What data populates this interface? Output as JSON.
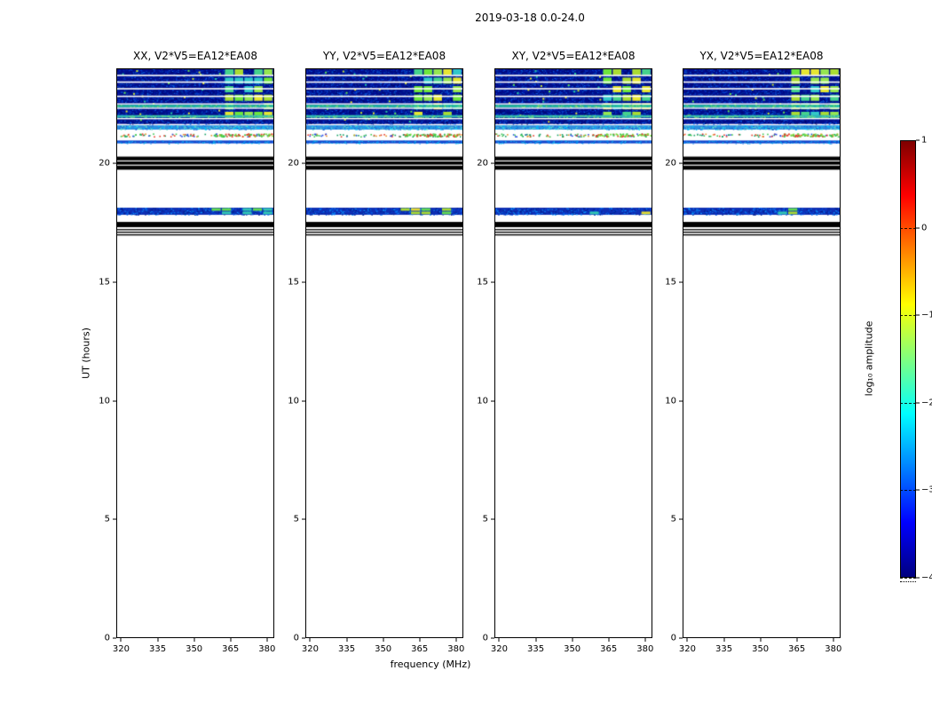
{
  "chart_data": {
    "type": "heatmap",
    "title": "2019-03-18 0.0-24.0",
    "xlabel": "frequency (MHz)",
    "ylabel": "UT (hours)",
    "xlim": [
      318,
      383
    ],
    "ylim": [
      0,
      24
    ],
    "xticks": [
      320,
      335,
      350,
      365,
      380
    ],
    "yticks": [
      0,
      5,
      10,
      15,
      20
    ],
    "grid": false,
    "panels": [
      {
        "polarization": "XX",
        "title": "XX, V2*V5=EA12*EA08"
      },
      {
        "polarization": "YY",
        "title": "YY, V2*V5=EA12*EA08"
      },
      {
        "polarization": "XY",
        "title": "XY, V2*V5=EA12*EA08"
      },
      {
        "polarization": "YX",
        "title": "YX, V2*V5=EA12*EA08"
      }
    ],
    "colorbar": {
      "label": "log₁₀ amplitude",
      "ticks": [
        1,
        0,
        -1,
        -2,
        -3,
        -4
      ],
      "range": [
        -4,
        1
      ],
      "colormap": "jet"
    },
    "coverage_note": "Data present only between UT ~17.0 and 24.0; panels are blank (white) from UT 0 to ~17. All four polarization panels show nearly identical structure.",
    "panel_seeds": [
      11,
      22,
      33,
      44
    ],
    "features": [
      {
        "kind": "noise",
        "ut": [
          21.66,
          24.0
        ],
        "f": [
          318,
          383
        ],
        "base": "#000d8c",
        "alt": [
          "#0020b4",
          "#0041d2",
          "#0a64e6",
          "#00379b",
          "#000764"
        ],
        "density": 0.55
      },
      {
        "kind": "speckles",
        "ut": [
          21.7,
          23.95
        ],
        "f": [
          319,
          362
        ],
        "colors": [
          "#64e650",
          "#c8e632",
          "#e6e632",
          "#28c8a0"
        ],
        "count": 28,
        "size": 2
      },
      {
        "kind": "patchgrid",
        "ut": [
          21.68,
          23.97
        ],
        "f": [
          362.5,
          382.5
        ],
        "cols": 5,
        "rowH": 0.26,
        "rowGap": 0.1,
        "fill": 0.78,
        "colors": [
          "#aadc32",
          "#6ee63c",
          "#e6e632",
          "#46d28c",
          "#96e650",
          "#32c8c8"
        ]
      },
      {
        "kind": "hline",
        "uts": [
          23.7,
          23.42,
          23.14,
          22.82
        ],
        "color": "#ffffff",
        "h": 1.6
      },
      {
        "kind": "noise",
        "ut": [
          22.36,
          22.46
        ],
        "f": [
          318,
          383
        ],
        "base": "#28bea0",
        "alt": [
          "#50d2a0",
          "#96e664",
          "#14a0c8"
        ],
        "density": 0.5
      },
      {
        "kind": "noise",
        "ut": [
          21.93,
          22.03
        ],
        "f": [
          318,
          383
        ],
        "base": "#2fb4b4",
        "alt": [
          "#50d2a0",
          "#78dc78"
        ],
        "density": 0.5
      },
      {
        "kind": "hline",
        "uts": [
          22.5,
          22.32,
          21.88
        ],
        "color": "#ffffff",
        "h": 1.4
      },
      {
        "kind": "noise",
        "ut": [
          21.42,
          21.6
        ],
        "f": [
          318,
          383
        ],
        "base": "#2e8fe0",
        "alt": [
          "#00c8ff",
          "#64e6c8",
          "#1464d2"
        ],
        "density": 0.5
      },
      {
        "kind": "speckles",
        "ut": [
          21.08,
          21.26
        ],
        "f": [
          318,
          383
        ],
        "colors": [
          "#3cc850",
          "#e63c28",
          "#e69628",
          "#2850e6",
          "#14a064"
        ],
        "count": 80,
        "size": 1.6
      },
      {
        "kind": "speckles",
        "ut": [
          21.08,
          21.26
        ],
        "f": [
          358,
          383
        ],
        "colors": [
          "#3cc850",
          "#e63c28",
          "#78dc3c"
        ],
        "count": 60,
        "size": 1.8
      },
      {
        "kind": "noise",
        "ut": [
          20.84,
          20.96
        ],
        "f": [
          318,
          383
        ],
        "base": "#1246cd",
        "alt": [
          "#0080f0",
          "#00b4f0"
        ],
        "density": 0.4
      },
      {
        "kind": "solid",
        "ut": [
          19.73,
          20.28
        ],
        "f": [
          318,
          383
        ],
        "color": "#000000"
      },
      {
        "kind": "hline",
        "uts": [
          20.1,
          19.92
        ],
        "color": "#ffffff",
        "h": 1.2
      },
      {
        "kind": "noise",
        "ut": [
          17.83,
          18.13
        ],
        "f": [
          318,
          383
        ],
        "base": "#0f2fb4",
        "alt": [
          "#0050e6",
          "#0a96ff",
          "#001e8c"
        ],
        "density": 0.5
      },
      {
        "kind": "patchgrid",
        "ut": [
          17.85,
          18.11
        ],
        "f": [
          357,
          382.5
        ],
        "cols": 6,
        "rowH": 0.11,
        "rowGap": 0.035,
        "fill": 0.5,
        "colors": [
          "#64dc50",
          "#aadc32",
          "#32c8b4",
          "#e6dc32"
        ]
      },
      {
        "kind": "solid",
        "ut": [
          17.31,
          17.53
        ],
        "f": [
          318,
          383
        ],
        "color": "#000000"
      },
      {
        "kind": "solid",
        "ut": [
          17.18,
          17.23
        ],
        "f": [
          318,
          383
        ],
        "color": "#000000"
      },
      {
        "kind": "solid",
        "ut": [
          17.07,
          17.12
        ],
        "f": [
          318,
          383
        ],
        "color": "#000000"
      },
      {
        "kind": "solid",
        "ut": [
          16.96,
          17.01
        ],
        "f": [
          318,
          383
        ],
        "color": "#000000"
      }
    ]
  }
}
